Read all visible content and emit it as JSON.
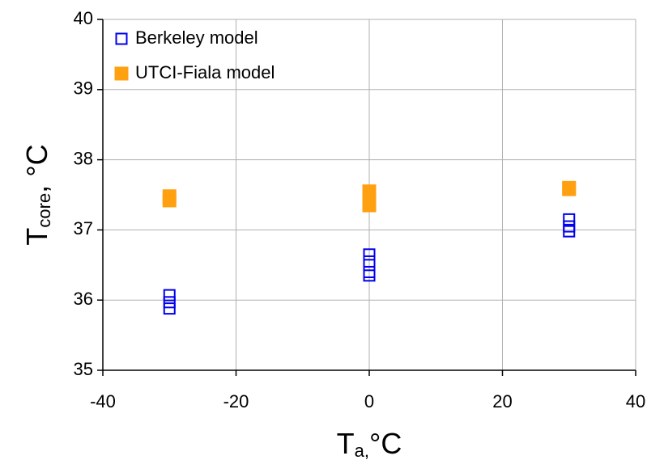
{
  "chart_data": {
    "type": "scatter",
    "xlabel": {
      "base": "T",
      "subscript": "a,",
      "suffix": "°C"
    },
    "ylabel": {
      "base": "T",
      "subscript": "core",
      "suffix": ", °C"
    },
    "xlim": [
      -40,
      40
    ],
    "xticks": [
      -40,
      -20,
      0,
      20,
      40
    ],
    "ylim": [
      35,
      40
    ],
    "yticks": [
      35,
      36,
      37,
      38,
      39,
      40
    ],
    "grid": true,
    "legend": "upper left",
    "series": [
      {
        "name": "Berkeley model",
        "color": "#0000ee",
        "marker": "hollow-square",
        "x": [
          -30,
          -30,
          -30,
          0,
          0,
          0,
          0,
          30,
          30,
          30
        ],
        "values": [
          36.07,
          35.97,
          35.88,
          36.65,
          36.55,
          36.4,
          36.35,
          37.15,
          37.05,
          36.98
        ]
      },
      {
        "name": "UTCI-Fiala model",
        "color": "#ffa010",
        "marker": "filled-square",
        "x": [
          -30,
          -30,
          0,
          0,
          0,
          30,
          30
        ],
        "values": [
          37.42,
          37.48,
          37.35,
          37.45,
          37.55,
          37.58,
          37.6
        ]
      }
    ]
  }
}
